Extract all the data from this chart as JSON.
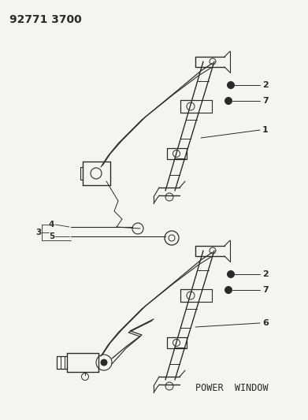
{
  "bg_color": "#f5f5f0",
  "line_color": "#2a2a2a",
  "title_text": "92771 3700",
  "title_fontsize": 10,
  "title_fontweight": "bold",
  "power_window_text": "POWER  WINDOW",
  "power_window_fontsize": 8.5,
  "figsize": [
    3.91,
    5.33
  ],
  "dpi": 100
}
